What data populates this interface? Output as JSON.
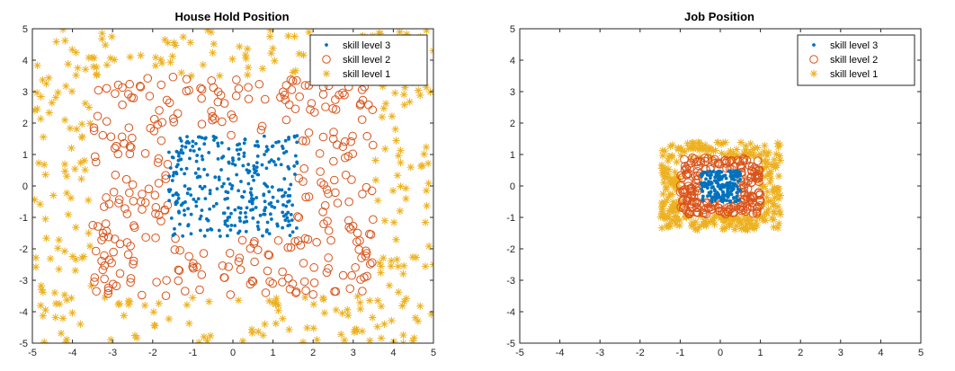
{
  "figure": {
    "colors": {
      "skill3": "#0072BD",
      "skill2": "#D95319",
      "skill1": "#EDB120"
    },
    "legend_labels": [
      "skill level 3",
      "skill level 2",
      "skill level 1"
    ]
  },
  "chart_data": [
    {
      "type": "scatter",
      "title": "House Hold Position",
      "xlabel": "",
      "ylabel": "",
      "xlim": [
        -5,
        5
      ],
      "ylim": [
        -5,
        5
      ],
      "xticks": [
        -5,
        -4,
        -3,
        -2,
        -1,
        0,
        1,
        2,
        3,
        4,
        5
      ],
      "yticks": [
        -5,
        -4,
        -3,
        -2,
        -1,
        0,
        1,
        2,
        3,
        4,
        5
      ],
      "grid": false,
      "legend_position": "top-right",
      "series": [
        {
          "name": "skill level 3",
          "marker": "dot",
          "color": "#0072BD",
          "region": {
            "box": [
              -1.6,
              1.6,
              -1.6,
              1.6
            ]
          },
          "count": 330
        },
        {
          "name": "skill level 2",
          "marker": "circle",
          "color": "#D95319",
          "region": {
            "inner_box": [
              -1.6,
              1.6,
              -1.6,
              1.6
            ],
            "outer_box": [
              -3.5,
              3.5,
              -3.5,
              3.5
            ]
          },
          "count": 330
        },
        {
          "name": "skill level 1",
          "marker": "star",
          "color": "#EDB120",
          "region": {
            "inner_box": [
              -3.5,
              3.5,
              -3.5,
              3.5
            ],
            "outer_box": [
              -5,
              5,
              -5,
              5
            ]
          },
          "count": 330
        }
      ]
    },
    {
      "type": "scatter",
      "title": "Job Position",
      "xlabel": "",
      "ylabel": "",
      "xlim": [
        -5,
        5
      ],
      "ylim": [
        -5,
        5
      ],
      "xticks": [
        -5,
        -4,
        -3,
        -2,
        -1,
        0,
        1,
        2,
        3,
        4,
        5
      ],
      "yticks": [
        -5,
        -4,
        -3,
        -2,
        -1,
        0,
        1,
        2,
        3,
        4,
        5
      ],
      "grid": false,
      "legend_position": "top-right",
      "series": [
        {
          "name": "skill level 3",
          "marker": "dot",
          "color": "#0072BD",
          "region": {
            "box": [
              -0.5,
              0.5,
              -0.5,
              0.5
            ]
          },
          "count": 200
        },
        {
          "name": "skill level 2",
          "marker": "circle",
          "color": "#D95319",
          "region": {
            "inner_box": [
              -0.5,
              0.5,
              -0.5,
              0.5
            ],
            "outer_box": [
              -1.0,
              1.0,
              -0.9,
              0.9
            ]
          },
          "count": 220
        },
        {
          "name": "skill level 1",
          "marker": "star",
          "color": "#EDB120",
          "region": {
            "inner_box": [
              -1.0,
              1.0,
              -0.9,
              0.9
            ],
            "outer_box": [
              -1.5,
              1.5,
              -1.4,
              1.4
            ]
          },
          "count": 300
        }
      ]
    }
  ]
}
